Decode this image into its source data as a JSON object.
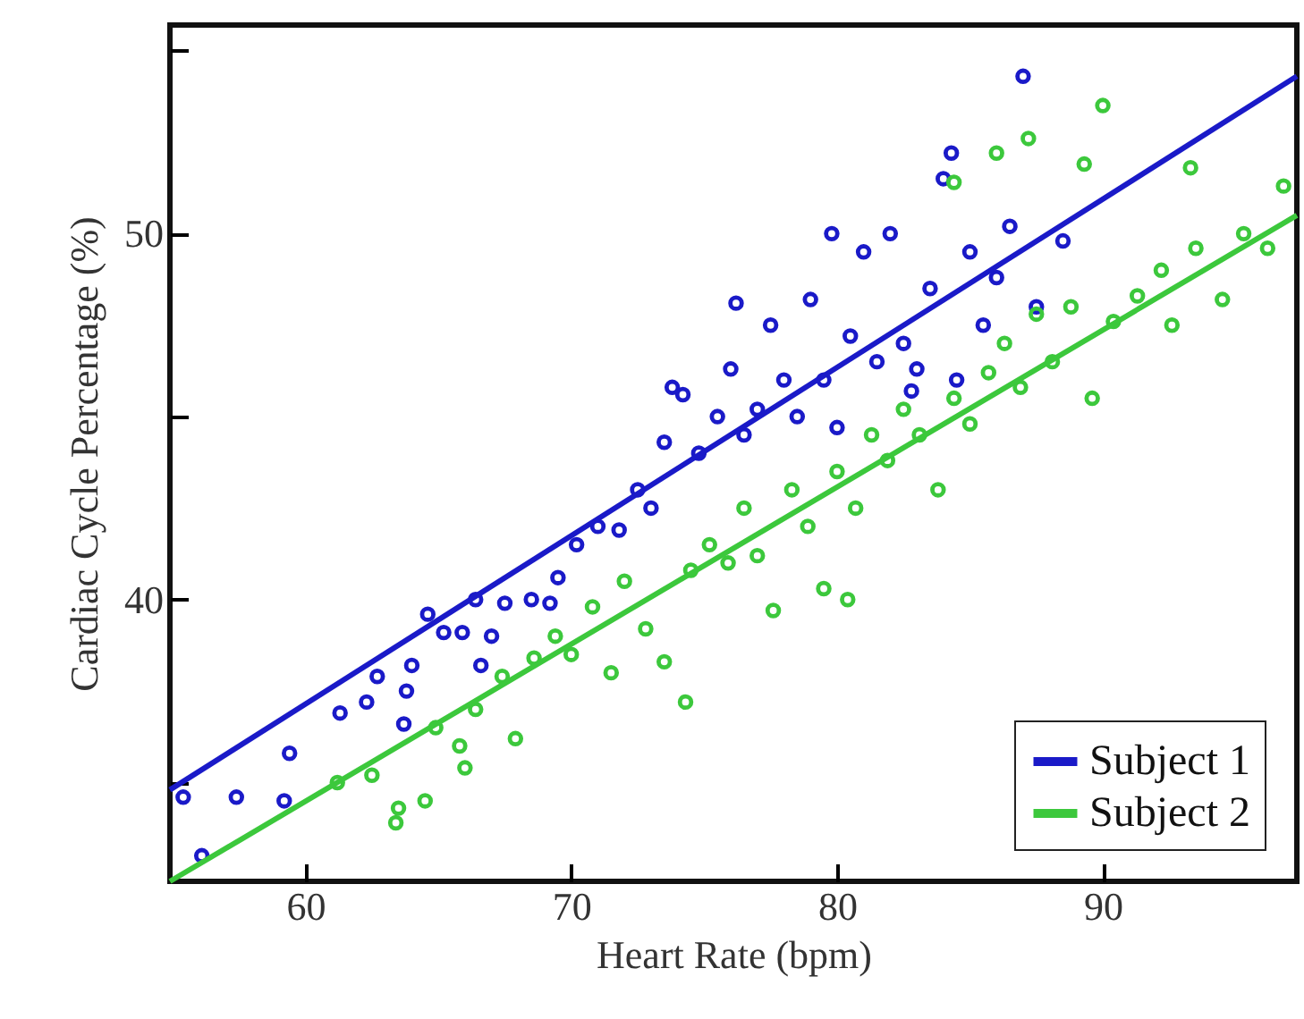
{
  "chart_data": {
    "type": "scatter",
    "xlabel": "Heart Rate (bpm)",
    "ylabel": "Cardiac Cycle Percentage (%)",
    "xlim": [
      54.9,
      97.3
    ],
    "xticks": [
      60,
      70,
      80,
      90
    ],
    "ylim": [
      32.3,
      55.7
    ],
    "yticks": [
      {
        "value": 35,
        "label": null
      },
      40,
      {
        "value": 45,
        "label": null
      },
      50,
      {
        "value": 55,
        "label": null
      }
    ],
    "grid": false,
    "legend": "bottom right",
    "series": [
      {
        "marker": "circle",
        "color": "#1a1ac8",
        "x": [
          55.4,
          56.1,
          57.4,
          59.2,
          59.4,
          61.3,
          62.3,
          62.7,
          63.7,
          63.8,
          64.0,
          64.6,
          65.2,
          65.9,
          66.4,
          66.6,
          67.0,
          67.5,
          68.5,
          69.2,
          69.5,
          70.2,
          71.0,
          71.8,
          72.5,
          73.0,
          73.5,
          74.2,
          74.8,
          75.5,
          76.0,
          76.5,
          77.0,
          77.5,
          78.0,
          78.5,
          79.0,
          79.5,
          80.0,
          80.5,
          81.0,
          81.5,
          82.0,
          82.5,
          83.0,
          83.5,
          84.0,
          84.5,
          85.0,
          85.5,
          86.0,
          86.5,
          87.0,
          87.5,
          84.3,
          88.5,
          76.2,
          73.8,
          79.8,
          82.8
        ],
        "values": [
          34.6,
          33.0,
          34.6,
          34.5,
          35.8,
          36.9,
          37.2,
          37.9,
          36.6,
          37.5,
          38.2,
          39.6,
          39.1,
          39.1,
          40.0,
          38.2,
          39.0,
          39.9,
          40.0,
          39.9,
          40.6,
          41.5,
          42.0,
          41.9,
          43.0,
          42.5,
          44.3,
          45.6,
          44.0,
          45.0,
          46.3,
          44.5,
          45.2,
          47.5,
          46.0,
          45.0,
          48.2,
          46.0,
          44.7,
          47.2,
          49.5,
          46.5,
          50.0,
          47.0,
          46.3,
          48.5,
          51.5,
          46.0,
          49.5,
          47.5,
          48.8,
          50.2,
          54.3,
          48.0,
          52.2,
          49.8,
          48.1,
          45.8,
          50.0,
          45.7
        ]
      },
      {
        "marker": "circle",
        "color": "#3cc83c",
        "x": [
          63.4,
          63.5,
          64.5,
          61.2,
          62.5,
          64.9,
          65.8,
          66.0,
          66.4,
          67.4,
          67.9,
          68.6,
          69.4,
          70.0,
          70.8,
          71.5,
          72.0,
          72.8,
          73.5,
          74.3,
          74.5,
          75.2,
          75.9,
          76.5,
          77.0,
          77.6,
          78.3,
          78.9,
          79.5,
          80.0,
          80.7,
          81.3,
          81.9,
          82.5,
          83.1,
          83.8,
          84.4,
          85.0,
          85.7,
          86.3,
          86.9,
          87.5,
          88.1,
          88.8,
          89.3,
          89.6,
          90.4,
          91.3,
          92.2,
          92.6,
          93.5,
          94.5,
          95.3,
          96.2,
          96.8,
          86.0,
          87.2,
          84.4,
          90.0,
          93.3,
          80.4
        ],
        "values": [
          33.9,
          34.3,
          34.5,
          35.0,
          35.2,
          36.5,
          36.0,
          35.4,
          37.0,
          37.9,
          36.2,
          38.4,
          39.0,
          38.5,
          39.8,
          38.0,
          40.5,
          39.2,
          38.3,
          37.2,
          40.8,
          41.5,
          41.0,
          42.5,
          41.2,
          39.7,
          43.0,
          42.0,
          40.3,
          43.5,
          42.5,
          44.5,
          43.8,
          45.2,
          44.5,
          43.0,
          45.5,
          44.8,
          46.2,
          47.0,
          45.8,
          47.8,
          46.5,
          48.0,
          51.9,
          45.5,
          47.6,
          48.3,
          49.0,
          47.5,
          49.6,
          48.2,
          50.0,
          49.6,
          51.3,
          52.2,
          52.6,
          51.4,
          53.5,
          51.8,
          40.0
        ]
      },
      {
        "type": "line",
        "marker": "none",
        "name": "Subject 1",
        "color": "#1a1ac8",
        "x": [
          54.9,
          97.3
        ],
        "values": [
          34.8,
          54.3
        ]
      },
      {
        "type": "line",
        "marker": "none",
        "name": "Subject 2",
        "color": "#3cc83c",
        "x": [
          54.9,
          97.3
        ],
        "values": [
          32.3,
          50.5
        ]
      }
    ]
  }
}
